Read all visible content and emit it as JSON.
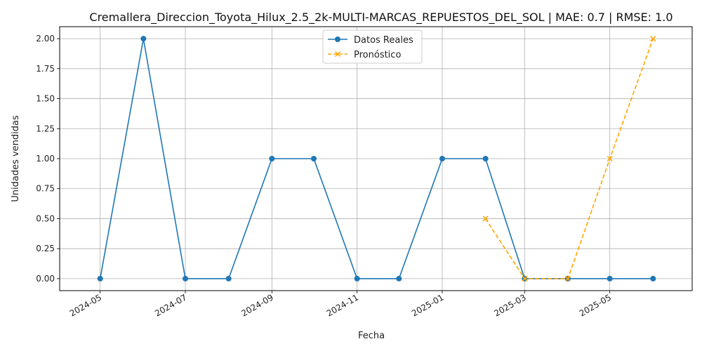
{
  "chart_data": {
    "type": "line",
    "title": "Cremallera_Direccion_Toyota_Hilux_2.5_2k-MULTI-MARCAS_REPUESTOS_DEL_SOL | MAE: 0.7 | RMSE: 1.0",
    "xlabel": "Fecha",
    "ylabel": "Unidades vendidas",
    "xlim": [
      "2024-04-02",
      "2025-06-29"
    ],
    "ylim": [
      -0.1,
      2.1
    ],
    "x_ticks": [
      "2024-05",
      "2024-07",
      "2024-09",
      "2024-11",
      "2025-01",
      "2025-03",
      "2025-05"
    ],
    "y_ticks": [
      "0.00",
      "0.25",
      "0.50",
      "0.75",
      "1.00",
      "1.25",
      "1.50",
      "1.75",
      "2.00"
    ],
    "grid": true,
    "legend_position": "top-center",
    "series": [
      {
        "name": "Datos Reales",
        "color": "#1f77b4",
        "style": "solid",
        "marker": "circle",
        "x": [
          "2024-05-01",
          "2024-06-01",
          "2024-07-01",
          "2024-08-01",
          "2024-09-01",
          "2024-10-01",
          "2024-11-01",
          "2024-12-01",
          "2025-01-01",
          "2025-02-01",
          "2025-03-01",
          "2025-04-01",
          "2025-05-01",
          "2025-06-01"
        ],
        "values": [
          0,
          2,
          0,
          0,
          1,
          1,
          0,
          0,
          1,
          1,
          0,
          0,
          0,
          0
        ]
      },
      {
        "name": "Pronóstico",
        "color": "#ffa500",
        "style": "dashed",
        "marker": "x",
        "x": [
          "2025-02-01",
          "2025-03-01",
          "2025-04-01",
          "2025-05-01",
          "2025-06-01"
        ],
        "values": [
          0.5,
          0,
          0,
          1,
          2
        ]
      }
    ]
  }
}
